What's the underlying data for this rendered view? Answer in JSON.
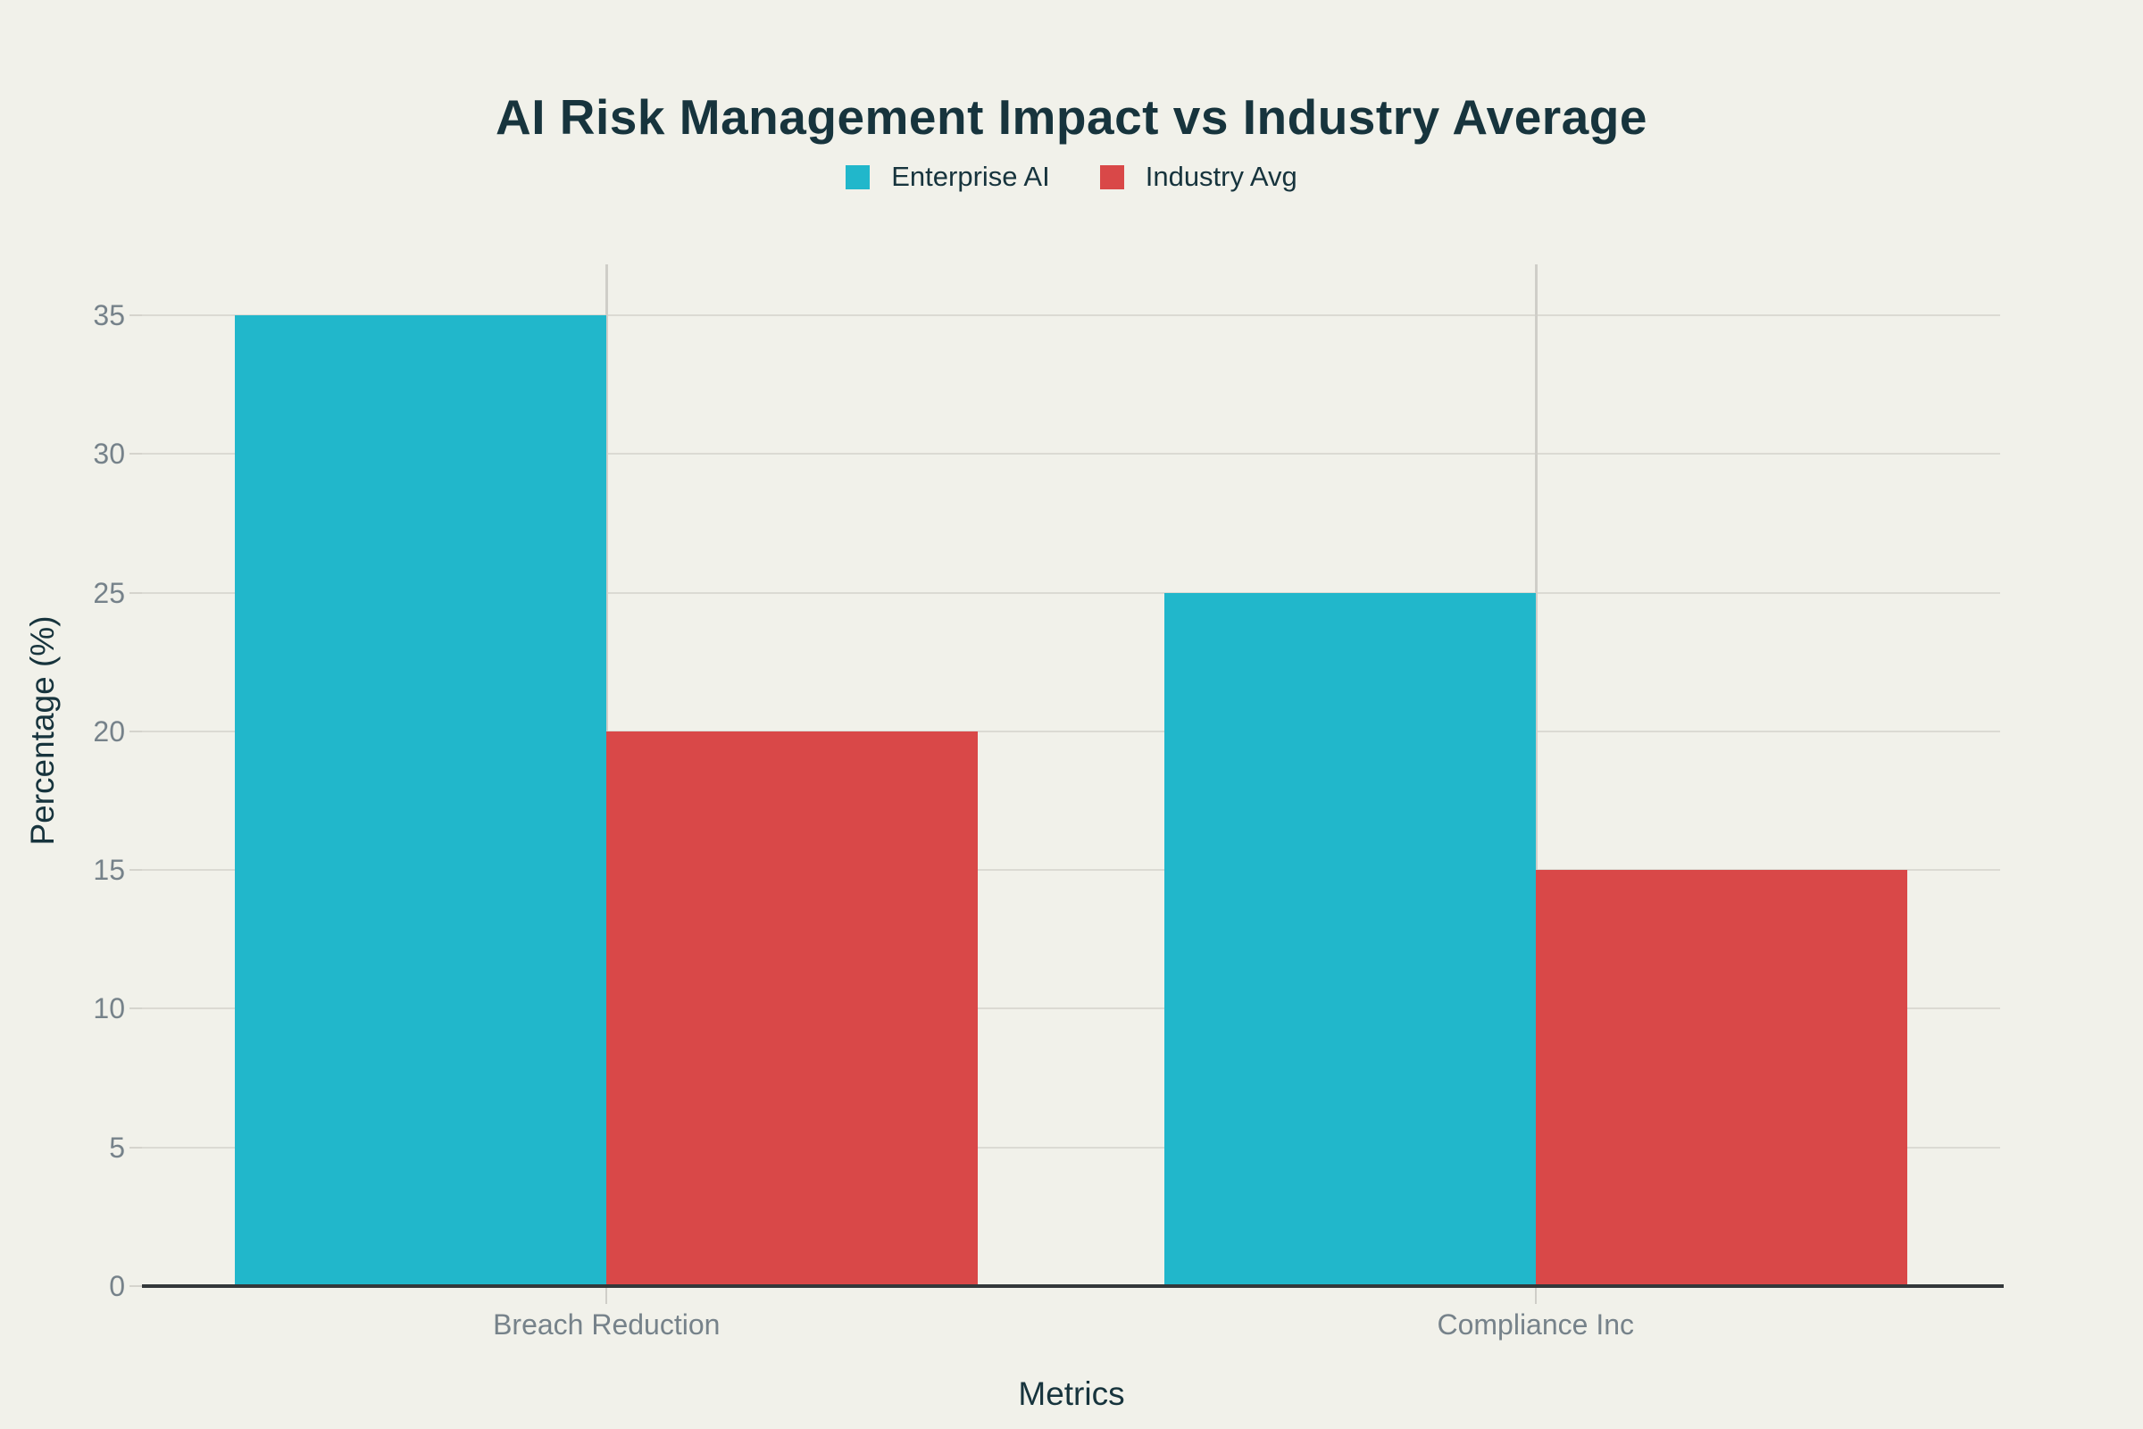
{
  "chart_data": {
    "type": "bar",
    "title": "AI Risk Management Impact vs Industry Average",
    "categories": [
      "Breach Reduction",
      "Compliance Inc"
    ],
    "series": [
      {
        "name": "Enterprise AI",
        "color": "#21B7CB",
        "values": [
          35,
          25
        ]
      },
      {
        "name": "Industry Avg",
        "color": "#D94848",
        "values": [
          20,
          15
        ]
      }
    ],
    "xlabel": "Metrics",
    "ylabel": "Percentage (%)",
    "ylim": [
      0,
      36.8
    ],
    "yticks": [
      0,
      5,
      10,
      15,
      20,
      25,
      30,
      35
    ],
    "grid": true,
    "legend_position": "top-center",
    "colors": {
      "background": "#F1F1EA",
      "title_text": "#17343D",
      "axis_title_text": "#17343D",
      "legend_text": "#17343D",
      "tick_label_text": "#76828A",
      "gridline_horizontal": "#DBDAD3",
      "gridline_vertical": "#CFCEC8",
      "tick_mark": "#D5D4CD",
      "zero_line": "#33383A"
    }
  }
}
